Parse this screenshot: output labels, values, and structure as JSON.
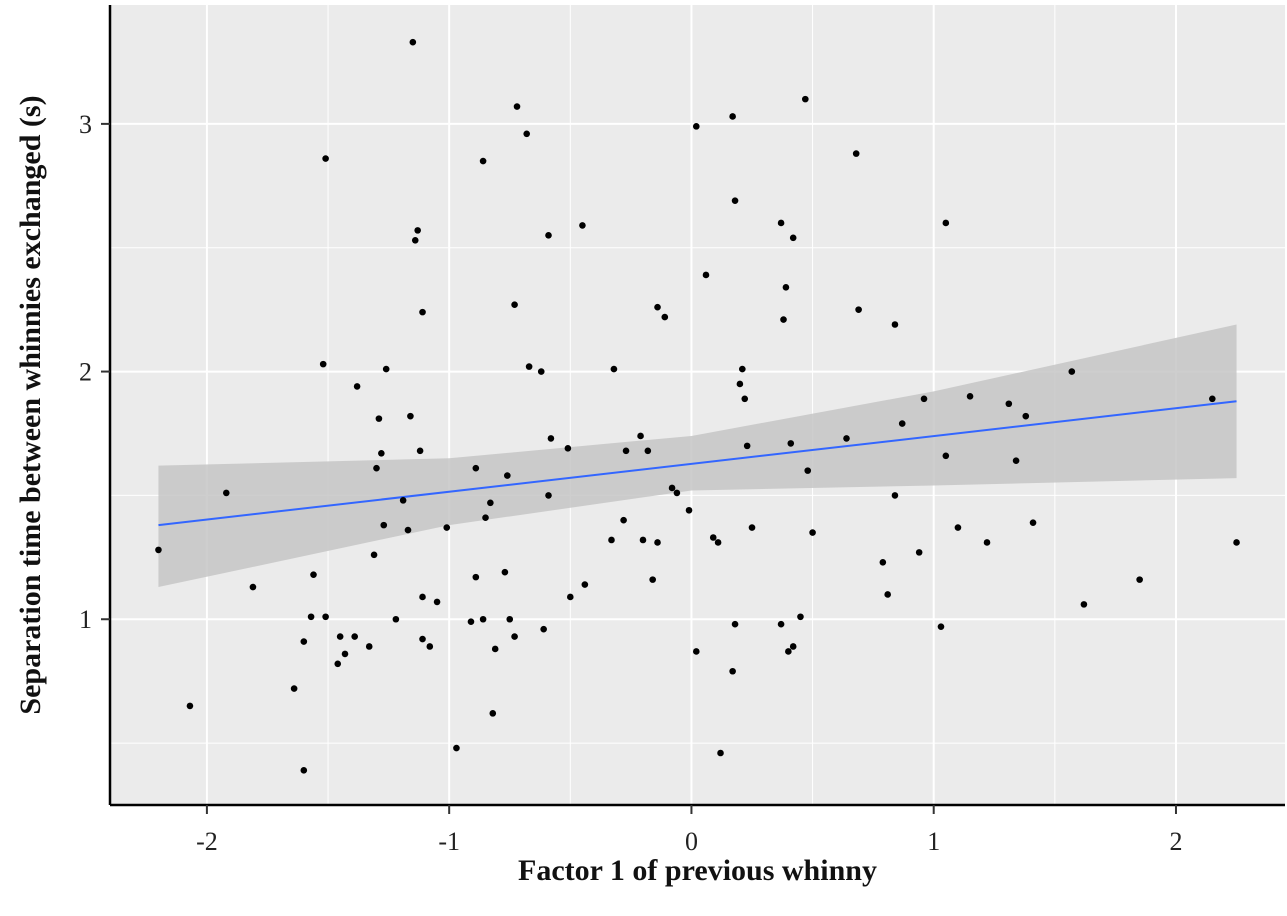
{
  "chart_data": {
    "type": "scatter",
    "title": "",
    "xlabel": "Factor 1 of previous whinny",
    "ylabel": "Separation time between whinnies exchanged (s)",
    "xlim": [
      -2.4,
      2.45
    ],
    "ylim": [
      0.25,
      3.48
    ],
    "x_ticks": [
      -2,
      -1,
      0,
      1,
      2
    ],
    "y_ticks": [
      1,
      2,
      3
    ],
    "x_tick_labels": [
      "-2",
      "-1",
      "0",
      "1",
      "2"
    ],
    "y_tick_labels": [
      "1",
      "2",
      "3"
    ],
    "grid": true,
    "panel_background": "#ebebeb",
    "grid_color": "#ffffff",
    "point_color": "#000000",
    "trend_color": "#3366ff",
    "ribbon_color": "#c6c6c6",
    "trend_line": {
      "x": [
        -2.2,
        2.25
      ],
      "y": [
        1.38,
        1.88
      ]
    },
    "confidence_band": {
      "x": [
        -2.2,
        -1.0,
        0.0,
        1.0,
        2.25
      ],
      "lower": [
        1.13,
        1.38,
        1.52,
        1.54,
        1.57
      ],
      "upper": [
        1.62,
        1.65,
        1.74,
        1.92,
        2.19
      ]
    },
    "points": [
      [
        -2.2,
        1.28
      ],
      [
        -2.07,
        0.65
      ],
      [
        -1.92,
        1.51
      ],
      [
        -1.81,
        1.13
      ],
      [
        -1.64,
        0.72
      ],
      [
        -1.6,
        0.91
      ],
      [
        -1.6,
        0.39
      ],
      [
        -1.57,
        1.01
      ],
      [
        -1.56,
        1.18
      ],
      [
        -1.52,
        2.03
      ],
      [
        -1.51,
        2.86
      ],
      [
        -1.51,
        1.01
      ],
      [
        -1.46,
        0.82
      ],
      [
        -1.45,
        0.93
      ],
      [
        -1.43,
        0.86
      ],
      [
        -1.39,
        0.93
      ],
      [
        -1.38,
        1.94
      ],
      [
        -1.33,
        0.89
      ],
      [
        -1.31,
        1.26
      ],
      [
        -1.3,
        1.61
      ],
      [
        -1.29,
        1.81
      ],
      [
        -1.28,
        1.67
      ],
      [
        -1.27,
        1.38
      ],
      [
        -1.26,
        2.01
      ],
      [
        -1.22,
        1.0
      ],
      [
        -1.19,
        1.48
      ],
      [
        -1.17,
        1.36
      ],
      [
        -1.16,
        1.82
      ],
      [
        -1.15,
        3.33
      ],
      [
        -1.14,
        2.53
      ],
      [
        -1.13,
        2.57
      ],
      [
        -1.12,
        1.68
      ],
      [
        -1.11,
        2.24
      ],
      [
        -1.11,
        0.92
      ],
      [
        -1.11,
        1.09
      ],
      [
        -1.08,
        0.89
      ],
      [
        -1.05,
        1.07
      ],
      [
        -1.01,
        1.37
      ],
      [
        -0.97,
        0.48
      ],
      [
        -0.91,
        0.99
      ],
      [
        -0.89,
        1.61
      ],
      [
        -0.89,
        1.17
      ],
      [
        -0.86,
        1.0
      ],
      [
        -0.86,
        2.85
      ],
      [
        -0.85,
        1.41
      ],
      [
        -0.83,
        1.47
      ],
      [
        -0.82,
        0.62
      ],
      [
        -0.81,
        0.88
      ],
      [
        -0.77,
        1.19
      ],
      [
        -0.76,
        1.58
      ],
      [
        -0.75,
        1.0
      ],
      [
        -0.73,
        2.27
      ],
      [
        -0.73,
        0.93
      ],
      [
        -0.72,
        3.07
      ],
      [
        -0.68,
        2.96
      ],
      [
        -0.67,
        2.02
      ],
      [
        -0.62,
        2.0
      ],
      [
        -0.61,
        0.96
      ],
      [
        -0.59,
        2.55
      ],
      [
        -0.59,
        1.5
      ],
      [
        -0.58,
        1.73
      ],
      [
        -0.51,
        1.69
      ],
      [
        -0.5,
        1.09
      ],
      [
        -0.45,
        2.59
      ],
      [
        -0.44,
        1.14
      ],
      [
        -0.33,
        1.32
      ],
      [
        -0.32,
        2.01
      ],
      [
        -0.28,
        1.4
      ],
      [
        -0.27,
        1.68
      ],
      [
        -0.21,
        1.74
      ],
      [
        -0.2,
        1.32
      ],
      [
        -0.18,
        1.68
      ],
      [
        -0.16,
        1.16
      ],
      [
        -0.14,
        2.26
      ],
      [
        -0.14,
        1.31
      ],
      [
        -0.11,
        2.22
      ],
      [
        -0.08,
        1.53
      ],
      [
        -0.06,
        1.51
      ],
      [
        -0.01,
        1.44
      ],
      [
        0.02,
        2.99
      ],
      [
        0.02,
        0.87
      ],
      [
        0.06,
        2.39
      ],
      [
        0.09,
        1.33
      ],
      [
        0.11,
        1.31
      ],
      [
        0.12,
        0.46
      ],
      [
        0.17,
        3.03
      ],
      [
        0.17,
        0.79
      ],
      [
        0.18,
        2.69
      ],
      [
        0.18,
        0.98
      ],
      [
        0.2,
        1.95
      ],
      [
        0.21,
        2.01
      ],
      [
        0.22,
        1.89
      ],
      [
        0.23,
        1.7
      ],
      [
        0.25,
        1.37
      ],
      [
        0.37,
        2.6
      ],
      [
        0.37,
        0.98
      ],
      [
        0.38,
        2.21
      ],
      [
        0.39,
        2.34
      ],
      [
        0.4,
        0.87
      ],
      [
        0.41,
        1.71
      ],
      [
        0.42,
        2.54
      ],
      [
        0.42,
        0.89
      ],
      [
        0.45,
        1.01
      ],
      [
        0.47,
        3.1
      ],
      [
        0.48,
        1.6
      ],
      [
        0.5,
        1.35
      ],
      [
        0.64,
        1.73
      ],
      [
        0.68,
        2.88
      ],
      [
        0.69,
        2.25
      ],
      [
        0.79,
        1.23
      ],
      [
        0.81,
        1.1
      ],
      [
        0.84,
        2.19
      ],
      [
        0.84,
        1.5
      ],
      [
        0.87,
        1.79
      ],
      [
        0.94,
        1.27
      ],
      [
        0.96,
        1.89
      ],
      [
        1.03,
        0.97
      ],
      [
        1.05,
        2.6
      ],
      [
        1.05,
        1.66
      ],
      [
        1.1,
        1.37
      ],
      [
        1.15,
        1.9
      ],
      [
        1.22,
        1.31
      ],
      [
        1.31,
        1.87
      ],
      [
        1.34,
        1.64
      ],
      [
        1.38,
        1.82
      ],
      [
        1.41,
        1.39
      ],
      [
        1.57,
        2.0
      ],
      [
        1.62,
        1.06
      ],
      [
        1.85,
        1.16
      ],
      [
        2.15,
        1.89
      ],
      [
        2.25,
        1.31
      ]
    ]
  }
}
